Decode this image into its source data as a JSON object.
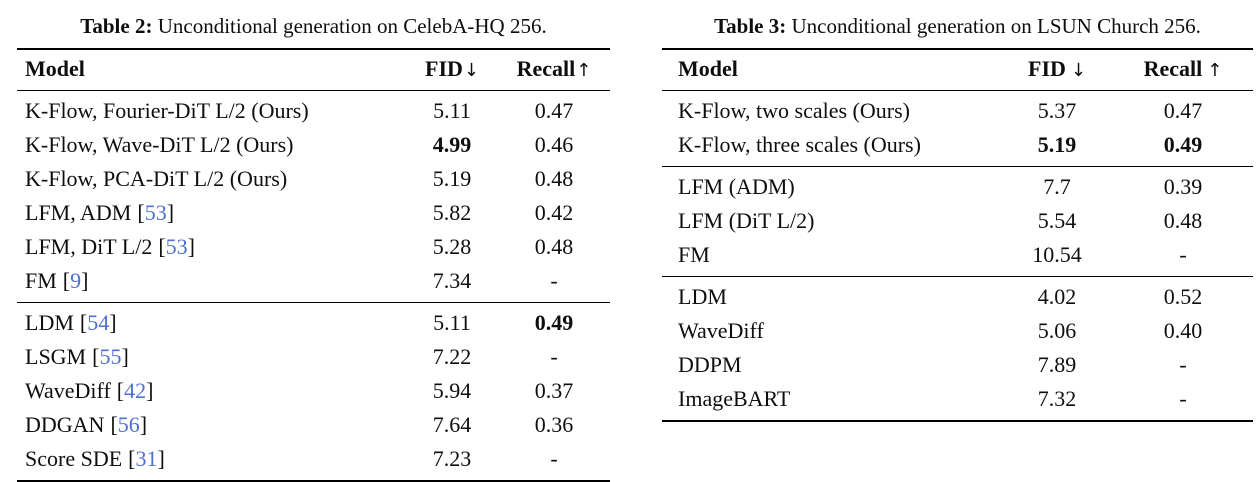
{
  "colors": {
    "citation_link": "#4e6fd3",
    "text": "#0e0e0e",
    "rule": "#000000"
  },
  "punct": {
    "lb": "[",
    "rb": "]"
  },
  "tables": [
    {
      "caption_label": "Table 2:",
      "caption_text": "Unconditional generation on CelebA-HQ 256.",
      "columns": [
        {
          "label": "Model"
        },
        {
          "label": "FID",
          "arrow": "↓"
        },
        {
          "label": "Recall",
          "arrow": "↑"
        }
      ],
      "groups": [
        {
          "rows": [
            {
              "model": "K-Flow, Fourier-DiT L/2 (Ours)",
              "fid": "5.11",
              "recall": "0.47"
            },
            {
              "model": "K-Flow, Wave-DiT L/2 (Ours)",
              "fid": "4.99",
              "recall": "0.46"
            },
            {
              "model": "K-Flow, PCA-DiT L/2 (Ours)",
              "fid": "5.19",
              "recall": "0.48"
            },
            {
              "model": "LFM, ADM",
              "cite": "53",
              "fid": "5.82",
              "recall": "0.42"
            },
            {
              "model": "LFM, DiT L/2",
              "cite": "53",
              "fid": "5.28",
              "recall": "0.48"
            },
            {
              "model": "FM",
              "cite": "9",
              "fid": "7.34",
              "recall": "-"
            }
          ]
        },
        {
          "rows": [
            {
              "model": "LDM",
              "cite": "54",
              "fid": "5.11",
              "recall": "0.49"
            },
            {
              "model": "LSGM",
              "cite": "55",
              "fid": "7.22",
              "recall": "-"
            },
            {
              "model": "WaveDiff",
              "cite": "42",
              "fid": "5.94",
              "recall": "0.37"
            },
            {
              "model": "DDGAN",
              "cite": "56",
              "fid": "7.64",
              "recall": "0.36"
            },
            {
              "model": "Score SDE",
              "cite": "31",
              "fid": "7.23",
              "recall": "-"
            }
          ]
        }
      ]
    },
    {
      "caption_label": "Table 3:",
      "caption_text": "Unconditional generation on LSUN Church 256.",
      "columns": [
        {
          "label": "Model"
        },
        {
          "label": "FID",
          "arrow": "↓"
        },
        {
          "label": "Recall",
          "arrow": "↑"
        }
      ],
      "groups": [
        {
          "rows": [
            {
              "model": "K-Flow, two scales (Ours)",
              "fid": "5.37",
              "recall": "0.47"
            },
            {
              "model": "K-Flow, three scales (Ours)",
              "fid": "5.19",
              "recall": "0.49"
            }
          ]
        },
        {
          "rows": [
            {
              "model": "LFM (ADM)",
              "fid": "7.7",
              "recall": "0.39"
            },
            {
              "model": "LFM (DiT L/2)",
              "fid": "5.54",
              "recall": "0.48"
            },
            {
              "model": "FM",
              "fid": "10.54",
              "recall": "-"
            }
          ]
        },
        {
          "rows": [
            {
              "model": "LDM",
              "fid": "4.02",
              "recall": "0.52"
            },
            {
              "model": "WaveDiff",
              "fid": "5.06",
              "recall": "0.40"
            },
            {
              "model": "DDPM",
              "fid": "7.89",
              "recall": "-"
            },
            {
              "model": "ImageBART",
              "fid": "7.32",
              "recall": "-"
            }
          ]
        }
      ]
    }
  ]
}
